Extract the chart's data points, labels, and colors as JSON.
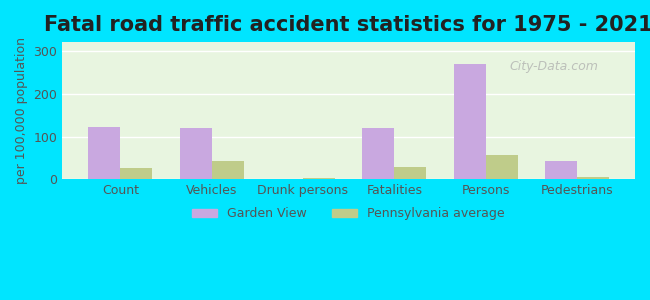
{
  "title": "Fatal road traffic accident statistics for 1975 - 2021",
  "ylabel": "per 100,000 population",
  "categories": [
    "Count",
    "Vehicles",
    "Drunk persons",
    "Fatalities",
    "Persons",
    "Pedestrians"
  ],
  "garden_view": [
    122,
    121,
    0,
    121,
    270,
    42
  ],
  "pennsylvania_avg": [
    27,
    42,
    4,
    28,
    57,
    5
  ],
  "bar_color_gv": "#c9a8e0",
  "bar_color_pa": "#bfcc8a",
  "background_outer": "#00e5ff",
  "background_plot_top": "#e8f5e9",
  "background_plot_bottom": "#f5f5e8",
  "ylim": [
    0,
    320
  ],
  "yticks": [
    0,
    100,
    200,
    300
  ],
  "legend_labels": [
    "Garden View",
    "Pennsylvania average"
  ],
  "bar_width": 0.35,
  "title_fontsize": 15,
  "label_fontsize": 9,
  "tick_fontsize": 9,
  "watermark": "City-Data.com"
}
